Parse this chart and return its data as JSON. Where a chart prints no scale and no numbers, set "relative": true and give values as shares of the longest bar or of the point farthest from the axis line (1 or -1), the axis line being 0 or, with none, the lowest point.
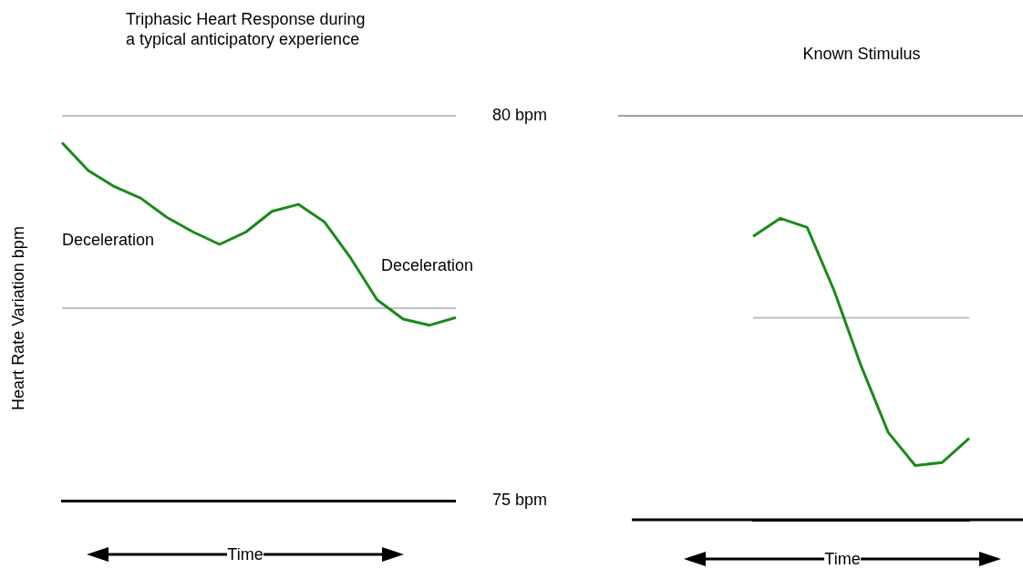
{
  "chart_data": [
    {
      "type": "line",
      "title": "Triphasic Heart Response during\na typical anticipatory experience",
      "xlabel": "Time",
      "ylabel": "Heart Rate Variation bpm",
      "categories": [
        null,
        null,
        null,
        null,
        null,
        null,
        null,
        null,
        null,
        null,
        null,
        null,
        null,
        null,
        null,
        null
      ],
      "series": [
        {
          "color": "#1a8a1a",
          "values": [
            79.65,
            79.29,
            79.08,
            78.93,
            78.68,
            78.49,
            78.33,
            78.49,
            78.76,
            78.85,
            78.62,
            78.15,
            77.61,
            77.36,
            77.28,
            77.38
          ]
        }
      ],
      "ylim": [
        75,
        80
      ],
      "yticks": [
        {
          "value": 75,
          "label": "75 bpm"
        },
        {
          "value": 77.5,
          "label": null
        },
        {
          "value": 80,
          "label": "80 bpm"
        }
      ],
      "grid": "y",
      "tick_labels": "y",
      "annotations": [
        "Deceleration",
        "Deceleration"
      ]
    },
    {
      "type": "line",
      "title": "Known Stimulus",
      "xlabel": "Time",
      "categories": [
        null,
        null,
        null,
        null,
        null,
        null,
        null,
        null,
        null
      ],
      "series": [
        {
          "color": "#1a8a1a",
          "values": [
            0.94,
            1,
            0.97,
            0.76,
            0.51,
            0.29,
            0.18,
            0.19,
            0.27
          ]
        }
      ],
      "relative": true,
      "ref_lines": [
        {
          "axis": "y",
          "value": 1.34,
          "color": "#a0a0a0"
        },
        {
          "axis": "y",
          "value": 0.67,
          "color": "#c0c0c0"
        }
      ],
      "tick_labels": false
    }
  ]
}
